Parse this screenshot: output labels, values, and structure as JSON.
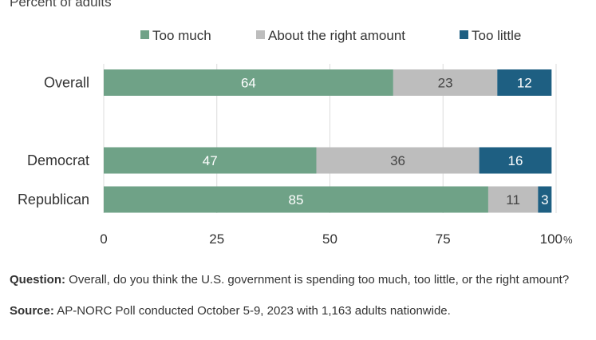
{
  "subtitle": "Percent of adults",
  "chart_data": {
    "type": "bar",
    "orientation": "horizontal",
    "stacked": true,
    "categories": [
      "Overall",
      "Democrat",
      "Republican"
    ],
    "series": [
      {
        "name": "Too much",
        "values": [
          64,
          47,
          85
        ],
        "color": "#6fa287"
      },
      {
        "name": "About the right amount",
        "values": [
          23,
          36,
          11
        ],
        "color": "#bdbdbd"
      },
      {
        "name": "Too little",
        "values": [
          12,
          16,
          3
        ],
        "color": "#1e5f82"
      }
    ],
    "xlim": [
      0,
      100
    ],
    "x_ticks": [
      "0",
      "25",
      "50",
      "75",
      "100"
    ],
    "x_unit": "%",
    "grid": true,
    "legend_position": "top"
  },
  "notes": {
    "question_label": "Question:",
    "question_text": " Overall, do you think the U.S. government is spending too much, too little, or the right amount?",
    "source_label": "Source:",
    "source_text": " AP-NORC Poll conducted October 5-9, 2023 with 1,163 adults nationwide."
  }
}
